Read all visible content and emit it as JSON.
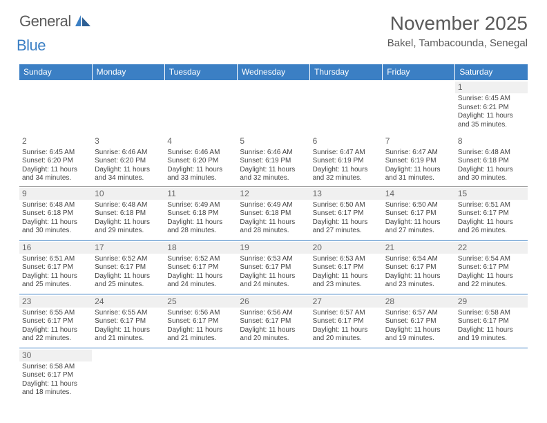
{
  "logo": {
    "general": "General",
    "blue": "Blue"
  },
  "title": "November 2025",
  "location": "Bakel, Tambacounda, Senegal",
  "dayHeaders": [
    "Sunday",
    "Monday",
    "Tuesday",
    "Wednesday",
    "Thursday",
    "Friday",
    "Saturday"
  ],
  "colors": {
    "headerBg": "#3b7fc4",
    "headerText": "#ffffff",
    "bodyText": "#444444",
    "dayNumBg": "#f0f0f0",
    "titleText": "#5a5a5a"
  },
  "weeks": [
    [
      null,
      null,
      null,
      null,
      null,
      null,
      {
        "n": "1",
        "sr": "6:45 AM",
        "ss": "6:21 PM",
        "dl": "11 hours and 35 minutes."
      }
    ],
    [
      {
        "n": "2",
        "sr": "6:45 AM",
        "ss": "6:20 PM",
        "dl": "11 hours and 34 minutes."
      },
      {
        "n": "3",
        "sr": "6:46 AM",
        "ss": "6:20 PM",
        "dl": "11 hours and 34 minutes."
      },
      {
        "n": "4",
        "sr": "6:46 AM",
        "ss": "6:20 PM",
        "dl": "11 hours and 33 minutes."
      },
      {
        "n": "5",
        "sr": "6:46 AM",
        "ss": "6:19 PM",
        "dl": "11 hours and 32 minutes."
      },
      {
        "n": "6",
        "sr": "6:47 AM",
        "ss": "6:19 PM",
        "dl": "11 hours and 32 minutes."
      },
      {
        "n": "7",
        "sr": "6:47 AM",
        "ss": "6:19 PM",
        "dl": "11 hours and 31 minutes."
      },
      {
        "n": "8",
        "sr": "6:48 AM",
        "ss": "6:18 PM",
        "dl": "11 hours and 30 minutes."
      }
    ],
    [
      {
        "n": "9",
        "sr": "6:48 AM",
        "ss": "6:18 PM",
        "dl": "11 hours and 30 minutes."
      },
      {
        "n": "10",
        "sr": "6:48 AM",
        "ss": "6:18 PM",
        "dl": "11 hours and 29 minutes."
      },
      {
        "n": "11",
        "sr": "6:49 AM",
        "ss": "6:18 PM",
        "dl": "11 hours and 28 minutes."
      },
      {
        "n": "12",
        "sr": "6:49 AM",
        "ss": "6:18 PM",
        "dl": "11 hours and 28 minutes."
      },
      {
        "n": "13",
        "sr": "6:50 AM",
        "ss": "6:17 PM",
        "dl": "11 hours and 27 minutes."
      },
      {
        "n": "14",
        "sr": "6:50 AM",
        "ss": "6:17 PM",
        "dl": "11 hours and 27 minutes."
      },
      {
        "n": "15",
        "sr": "6:51 AM",
        "ss": "6:17 PM",
        "dl": "11 hours and 26 minutes."
      }
    ],
    [
      {
        "n": "16",
        "sr": "6:51 AM",
        "ss": "6:17 PM",
        "dl": "11 hours and 25 minutes."
      },
      {
        "n": "17",
        "sr": "6:52 AM",
        "ss": "6:17 PM",
        "dl": "11 hours and 25 minutes."
      },
      {
        "n": "18",
        "sr": "6:52 AM",
        "ss": "6:17 PM",
        "dl": "11 hours and 24 minutes."
      },
      {
        "n": "19",
        "sr": "6:53 AM",
        "ss": "6:17 PM",
        "dl": "11 hours and 24 minutes."
      },
      {
        "n": "20",
        "sr": "6:53 AM",
        "ss": "6:17 PM",
        "dl": "11 hours and 23 minutes."
      },
      {
        "n": "21",
        "sr": "6:54 AM",
        "ss": "6:17 PM",
        "dl": "11 hours and 23 minutes."
      },
      {
        "n": "22",
        "sr": "6:54 AM",
        "ss": "6:17 PM",
        "dl": "11 hours and 22 minutes."
      }
    ],
    [
      {
        "n": "23",
        "sr": "6:55 AM",
        "ss": "6:17 PM",
        "dl": "11 hours and 22 minutes."
      },
      {
        "n": "24",
        "sr": "6:55 AM",
        "ss": "6:17 PM",
        "dl": "11 hours and 21 minutes."
      },
      {
        "n": "25",
        "sr": "6:56 AM",
        "ss": "6:17 PM",
        "dl": "11 hours and 21 minutes."
      },
      {
        "n": "26",
        "sr": "6:56 AM",
        "ss": "6:17 PM",
        "dl": "11 hours and 20 minutes."
      },
      {
        "n": "27",
        "sr": "6:57 AM",
        "ss": "6:17 PM",
        "dl": "11 hours and 20 minutes."
      },
      {
        "n": "28",
        "sr": "6:57 AM",
        "ss": "6:17 PM",
        "dl": "11 hours and 19 minutes."
      },
      {
        "n": "29",
        "sr": "6:58 AM",
        "ss": "6:17 PM",
        "dl": "11 hours and 19 minutes."
      }
    ],
    [
      {
        "n": "30",
        "sr": "6:58 AM",
        "ss": "6:17 PM",
        "dl": "11 hours and 18 minutes."
      },
      null,
      null,
      null,
      null,
      null,
      null
    ]
  ],
  "labels": {
    "sunrise": "Sunrise:",
    "sunset": "Sunset:",
    "daylight": "Daylight:"
  }
}
